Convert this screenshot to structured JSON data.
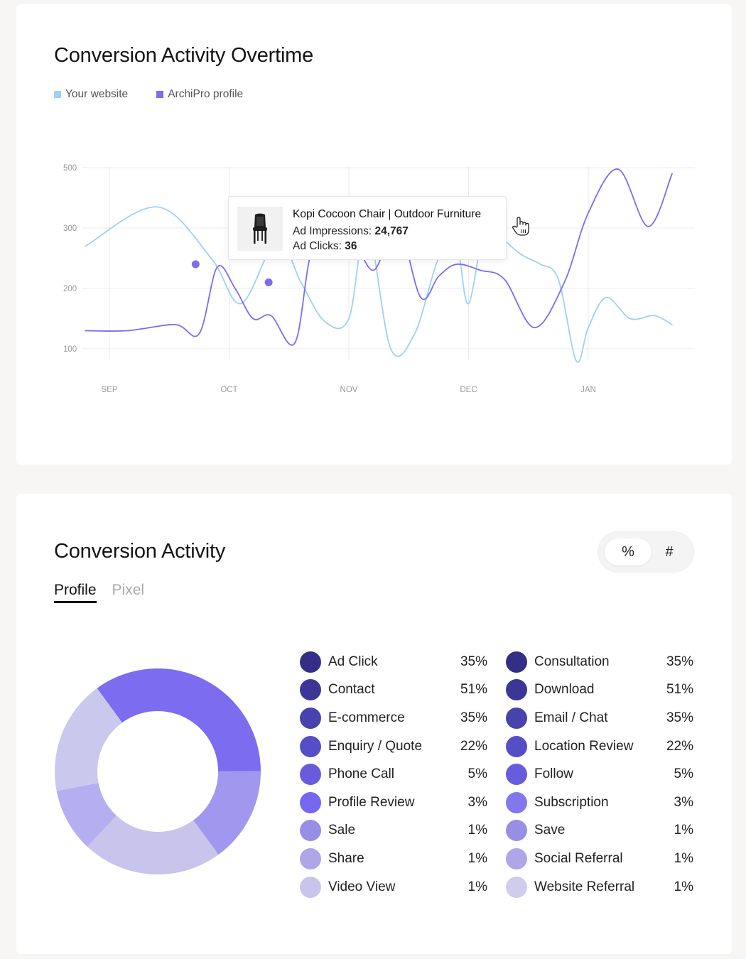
{
  "overtime": {
    "title": "Conversion Activity Overtime",
    "legend": [
      {
        "label": "Your website",
        "color": "#9fd0f5"
      },
      {
        "label": "ArchiPro profile",
        "color": "#7b6cf0"
      }
    ],
    "tooltip": {
      "product": "Kopi Cocoon Chair | Outdoor Furniture",
      "impressions_label": "Ad Impressions:",
      "impressions_value": "24,767",
      "clicks_label": "Ad Clicks:",
      "clicks_value": "36",
      "thumb_icon": "chair-icon"
    },
    "cursor_icon": "hand-pointer-icon"
  },
  "chart_data": {
    "type": "line",
    "x_ticks": [
      "SEP",
      "OCT",
      "NOV",
      "DEC",
      "JAN"
    ],
    "y_ticks": [
      100,
      200,
      300,
      500
    ],
    "series": [
      {
        "name": "Your website",
        "color": "#9fd0f5",
        "points": [
          [
            -0.2,
            270
          ],
          [
            0.4,
            370
          ],
          [
            0.85,
            250
          ],
          [
            1.1,
            175
          ],
          [
            1.4,
            280
          ],
          [
            1.6,
            210
          ],
          [
            1.8,
            145
          ],
          [
            2.0,
            150
          ],
          [
            2.15,
            310
          ],
          [
            2.35,
            100
          ],
          [
            2.55,
            125
          ],
          [
            2.75,
            250
          ],
          [
            2.9,
            270
          ],
          [
            3.0,
            175
          ],
          [
            3.15,
            330
          ],
          [
            3.3,
            280
          ],
          [
            3.45,
            255
          ],
          [
            3.6,
            240
          ],
          [
            3.75,
            215
          ],
          [
            3.9,
            80
          ],
          [
            4.0,
            135
          ],
          [
            4.15,
            185
          ],
          [
            4.35,
            150
          ],
          [
            4.55,
            155
          ],
          [
            4.7,
            140
          ]
        ]
      },
      {
        "name": "ArchiPro profile",
        "color": "#7b6cf0",
        "points": [
          [
            -0.2,
            130
          ],
          [
            0.15,
            130
          ],
          [
            0.55,
            140
          ],
          [
            0.75,
            125
          ],
          [
            0.9,
            235
          ],
          [
            1.05,
            200
          ],
          [
            1.2,
            150
          ],
          [
            1.35,
            155
          ],
          [
            1.55,
            110
          ],
          [
            1.7,
            270
          ],
          [
            1.95,
            330
          ],
          [
            2.2,
            230
          ],
          [
            2.4,
            320
          ],
          [
            2.6,
            185
          ],
          [
            2.75,
            220
          ],
          [
            2.9,
            240
          ],
          [
            3.1,
            230
          ],
          [
            3.3,
            215
          ],
          [
            3.55,
            135
          ],
          [
            3.8,
            210
          ],
          [
            4.0,
            350
          ],
          [
            4.25,
            495
          ],
          [
            4.5,
            305
          ],
          [
            4.7,
            480
          ]
        ]
      }
    ],
    "markers": [
      {
        "x": 0.72,
        "y": 240,
        "color": "#7b6cf0"
      },
      {
        "x": 1.33,
        "y": 210,
        "color": "#7b6cf0"
      }
    ]
  },
  "activity": {
    "title": "Conversion Activity",
    "toggle": {
      "percent": "%",
      "count": "#"
    },
    "tabs": [
      {
        "label": "Profile",
        "active": true
      },
      {
        "label": "Pixel",
        "active": false
      }
    ],
    "donut": [
      {
        "value": 35,
        "color": "#7b6cf0"
      },
      {
        "value": 15,
        "color": "#a297ee"
      },
      {
        "value": 22,
        "color": "#c9c4ec"
      },
      {
        "value": 10,
        "color": "#b5aef0"
      },
      {
        "value": 18,
        "color": "#cbc8ee"
      }
    ],
    "left_list": [
      {
        "label": "Ad Click",
        "value": "35%",
        "color": "#332f86"
      },
      {
        "label": "Contact",
        "value": "51%",
        "color": "#3c3797"
      },
      {
        "label": "E-commerce",
        "value": "35%",
        "color": "#4842ad"
      },
      {
        "label": "Enquiry / Quote",
        "value": "22%",
        "color": "#564ec6"
      },
      {
        "label": "Phone Call",
        "value": "5%",
        "color": "#665cdc"
      },
      {
        "label": "Profile Review",
        "value": "3%",
        "color": "#7568ee"
      },
      {
        "label": "Sale",
        "value": "1%",
        "color": "#988ee6"
      },
      {
        "label": "Share",
        "value": "1%",
        "color": "#aea6e8"
      },
      {
        "label": "Video View",
        "value": "1%",
        "color": "#c9c5ea"
      }
    ],
    "right_list": [
      {
        "label": "Consultation",
        "value": "35%",
        "color": "#332f86"
      },
      {
        "label": "Download",
        "value": "51%",
        "color": "#3c3797"
      },
      {
        "label": "Email / Chat",
        "value": "35%",
        "color": "#4842ad"
      },
      {
        "label": "Location Review",
        "value": "22%",
        "color": "#564ec6"
      },
      {
        "label": "Follow",
        "value": "5%",
        "color": "#665cdc"
      },
      {
        "label": "Subscription",
        "value": "3%",
        "color": "#8377ee"
      },
      {
        "label": "Save",
        "value": "1%",
        "color": "#988ee6"
      },
      {
        "label": "Social Referral",
        "value": "1%",
        "color": "#aea6e8"
      },
      {
        "label": "Website Referral",
        "value": "1%",
        "color": "#d0cdea"
      }
    ]
  }
}
